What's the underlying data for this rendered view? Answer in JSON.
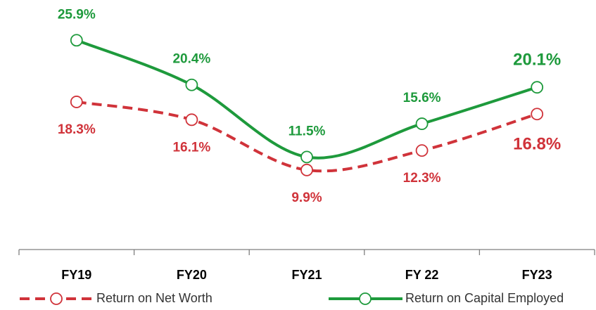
{
  "chart_data": {
    "type": "line",
    "categories": [
      "FY19",
      "FY20",
      "FY21",
      "FY 22",
      "FY23"
    ],
    "series": [
      {
        "name": "Return on Net Worth",
        "color": "#d0333a",
        "dash": true,
        "label_position": "below",
        "values": [
          18.3,
          16.1,
          9.9,
          12.3,
          16.8
        ],
        "value_labels": [
          "18.3%",
          "16.1%",
          "9.9%",
          "12.3%",
          "16.8%"
        ]
      },
      {
        "name": "Return on Capital Employed",
        "color": "#1e9a3c",
        "dash": false,
        "label_position": "above",
        "values": [
          25.9,
          20.4,
          11.5,
          15.6,
          20.1
        ],
        "value_labels": [
          "25.9%",
          "20.4%",
          "11.5%",
          "15.6%",
          "20.1%"
        ]
      }
    ],
    "ylim": [
      0,
      30
    ],
    "legend": "bottom"
  }
}
